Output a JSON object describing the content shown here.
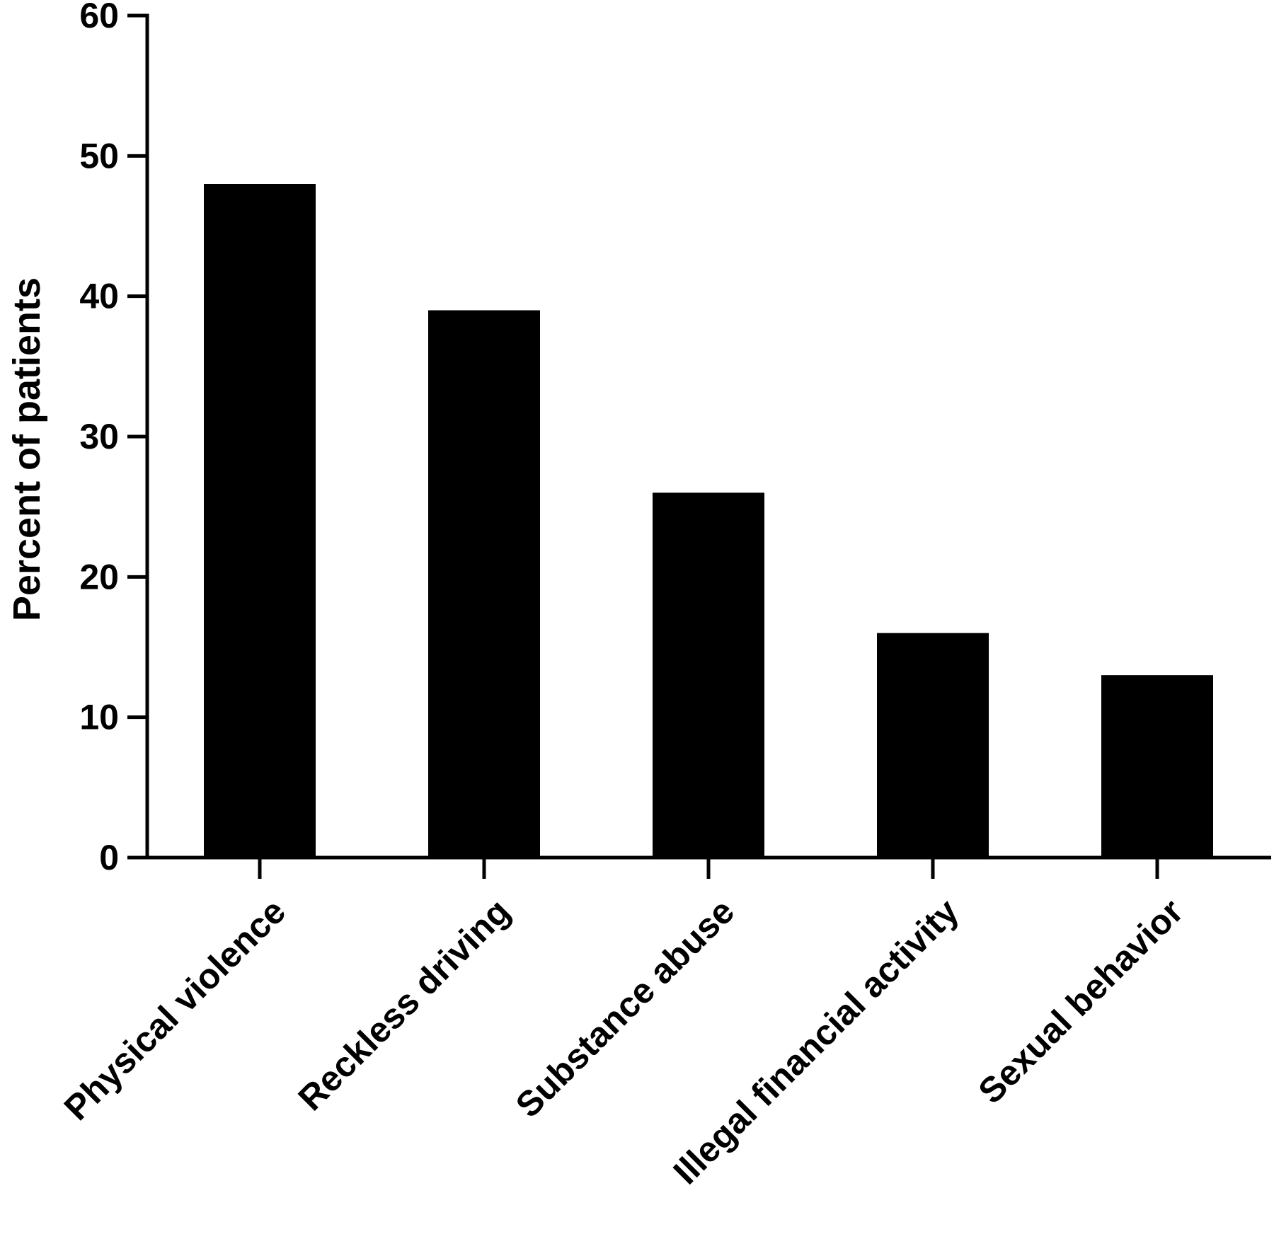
{
  "chart_data": {
    "type": "bar",
    "title": "",
    "xlabel": "",
    "ylabel": "Percent of patients",
    "categories": [
      "Physical violence",
      "Reckless driving",
      "Substance abuse",
      "Illegal financial activity",
      "Sexual behavior"
    ],
    "values": [
      48,
      39,
      26,
      16,
      13
    ],
    "ylim": [
      0,
      60
    ],
    "yticks": [
      0,
      10,
      20,
      30,
      40,
      50,
      60
    ],
    "grid": false,
    "legend": "none",
    "bar_color": "#000000",
    "axis_color": "#000000"
  }
}
